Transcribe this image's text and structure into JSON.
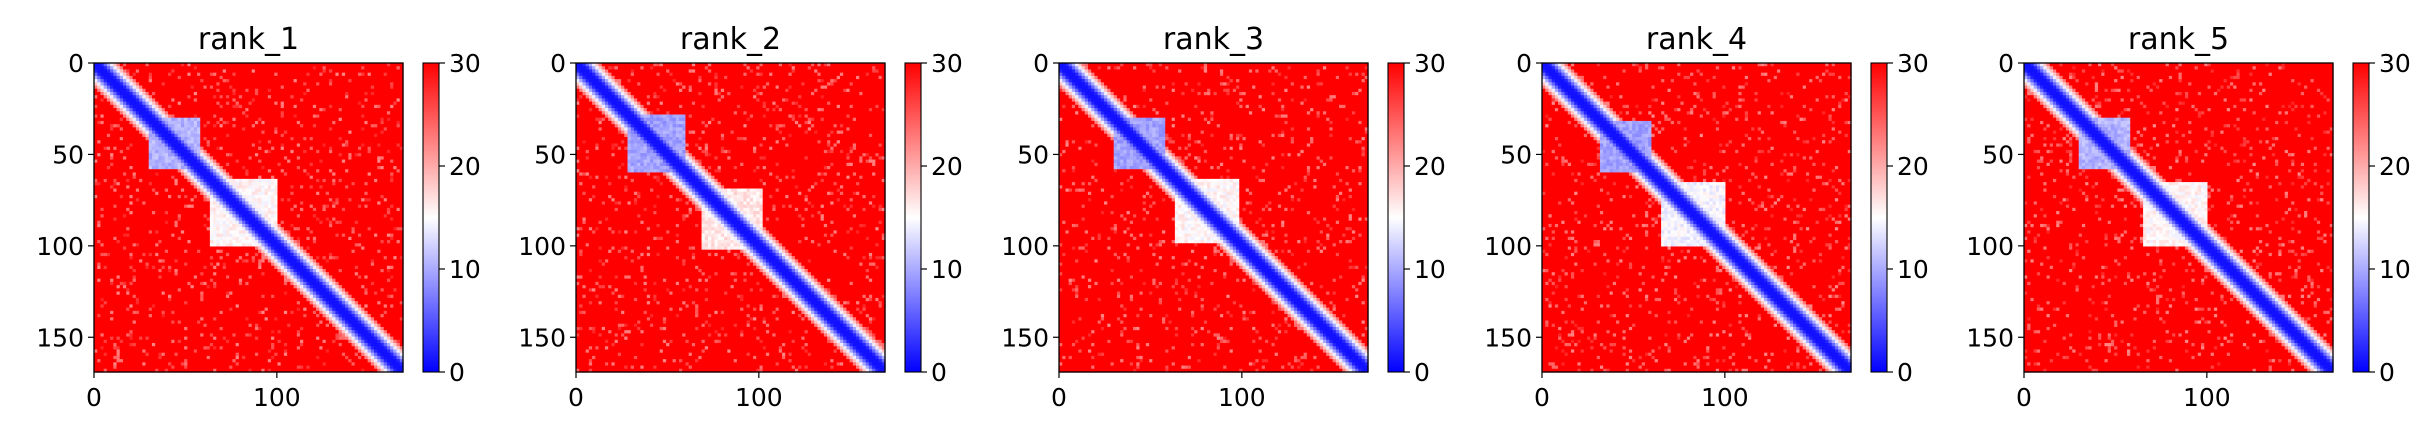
{
  "chart_data": [
    {
      "type": "heatmap",
      "title": "rank_1",
      "xlabel": "",
      "ylabel": "",
      "xlim": [
        0,
        169
      ],
      "ylim": [
        169,
        0
      ],
      "x_ticks": [
        "0",
        "100"
      ],
      "y_ticks": [
        "0",
        "50",
        "100",
        "150"
      ],
      "colorbar": {
        "cmap": "bwr",
        "range": [
          0,
          30
        ],
        "ticks": [
          "0",
          "10",
          "20",
          "30"
        ]
      },
      "pattern": {
        "diagonal_value": 1,
        "off_diagonal_value": 30,
        "domains": [
          {
            "start": 30,
            "end": 58,
            "value": 9
          },
          {
            "start": 64,
            "end": 100,
            "value": 14
          }
        ]
      }
    },
    {
      "type": "heatmap",
      "title": "rank_2",
      "xlabel": "",
      "ylabel": "",
      "xlim": [
        0,
        169
      ],
      "ylim": [
        169,
        0
      ],
      "x_ticks": [
        "0",
        "100"
      ],
      "y_ticks": [
        "0",
        "50",
        "100",
        "150"
      ],
      "colorbar": {
        "cmap": "bwr",
        "range": [
          0,
          30
        ],
        "ticks": [
          "0",
          "10",
          "20",
          "30"
        ]
      },
      "pattern": {
        "diagonal_value": 1,
        "off_diagonal_value": 30,
        "domains": [
          {
            "start": 28,
            "end": 60,
            "value": 8
          },
          {
            "start": 68,
            "end": 102,
            "value": 15
          }
        ]
      }
    },
    {
      "type": "heatmap",
      "title": "rank_3",
      "xlabel": "",
      "ylabel": "",
      "xlim": [
        0,
        169
      ],
      "ylim": [
        169,
        0
      ],
      "x_ticks": [
        "0",
        "100"
      ],
      "y_ticks": [
        "0",
        "50",
        "100",
        "150"
      ],
      "colorbar": {
        "cmap": "bwr",
        "range": [
          0,
          30
        ],
        "ticks": [
          "0",
          "10",
          "20",
          "30"
        ]
      },
      "pattern": {
        "diagonal_value": 1,
        "off_diagonal_value": 30,
        "domains": [
          {
            "start": 30,
            "end": 58,
            "value": 8
          },
          {
            "start": 64,
            "end": 98,
            "value": 14
          }
        ]
      }
    },
    {
      "type": "heatmap",
      "title": "rank_4",
      "xlabel": "",
      "ylabel": "",
      "xlim": [
        0,
        169
      ],
      "ylim": [
        169,
        0
      ],
      "x_ticks": [
        "0",
        "100"
      ],
      "y_ticks": [
        "0",
        "50",
        "100",
        "150"
      ],
      "colorbar": {
        "cmap": "bwr",
        "range": [
          0,
          30
        ],
        "ticks": [
          "0",
          "10",
          "20",
          "30"
        ]
      },
      "pattern": {
        "diagonal_value": 1,
        "off_diagonal_value": 30,
        "domains": [
          {
            "start": 32,
            "end": 60,
            "value": 8
          },
          {
            "start": 66,
            "end": 100,
            "value": 13
          }
        ]
      }
    },
    {
      "type": "heatmap",
      "title": "rank_5",
      "xlabel": "",
      "ylabel": "",
      "xlim": [
        0,
        169
      ],
      "ylim": [
        169,
        0
      ],
      "x_ticks": [
        "0",
        "100"
      ],
      "y_ticks": [
        "0",
        "50",
        "100",
        "150"
      ],
      "colorbar": {
        "cmap": "bwr",
        "range": [
          0,
          30
        ],
        "ticks": [
          "0",
          "10",
          "20",
          "30"
        ]
      },
      "pattern": {
        "diagonal_value": 1,
        "off_diagonal_value": 30,
        "domains": [
          {
            "start": 30,
            "end": 58,
            "value": 9
          },
          {
            "start": 66,
            "end": 100,
            "value": 14
          }
        ]
      }
    }
  ]
}
